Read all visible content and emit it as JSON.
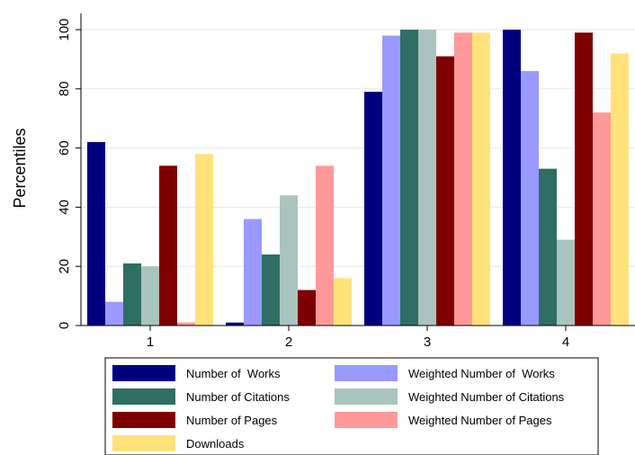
{
  "chart_data": {
    "type": "bar",
    "title": "",
    "xlabel": "",
    "ylabel": "Percentiles",
    "ylim": [
      0,
      100
    ],
    "yticks": [
      0,
      20,
      40,
      60,
      80,
      100
    ],
    "grid": true,
    "legend_position": "bottom",
    "categories": [
      "1",
      "2",
      "3",
      "4"
    ],
    "series": [
      {
        "name": "Number of  Works",
        "color": "#00007f",
        "values": [
          62,
          1,
          79,
          100
        ]
      },
      {
        "name": "Weighted Number of  Works",
        "color": "#9999ff",
        "values": [
          8,
          36,
          98,
          86
        ]
      },
      {
        "name": "Number of Citations",
        "color": "#2e6e64",
        "values": [
          21,
          24,
          100,
          53
        ]
      },
      {
        "name": "Weighted Number of Citations",
        "color": "#a9c4be",
        "values": [
          20,
          44,
          100,
          29
        ]
      },
      {
        "name": "Number of Pages",
        "color": "#7f0000",
        "values": [
          54,
          12,
          91,
          99
        ]
      },
      {
        "name": "Weighted Number of Pages",
        "color": "#ff9999",
        "values": [
          1,
          54,
          99,
          72
        ]
      },
      {
        "name": "Downloads",
        "color": "#ffe27a",
        "values": [
          58,
          16,
          99,
          92
        ]
      }
    ]
  }
}
